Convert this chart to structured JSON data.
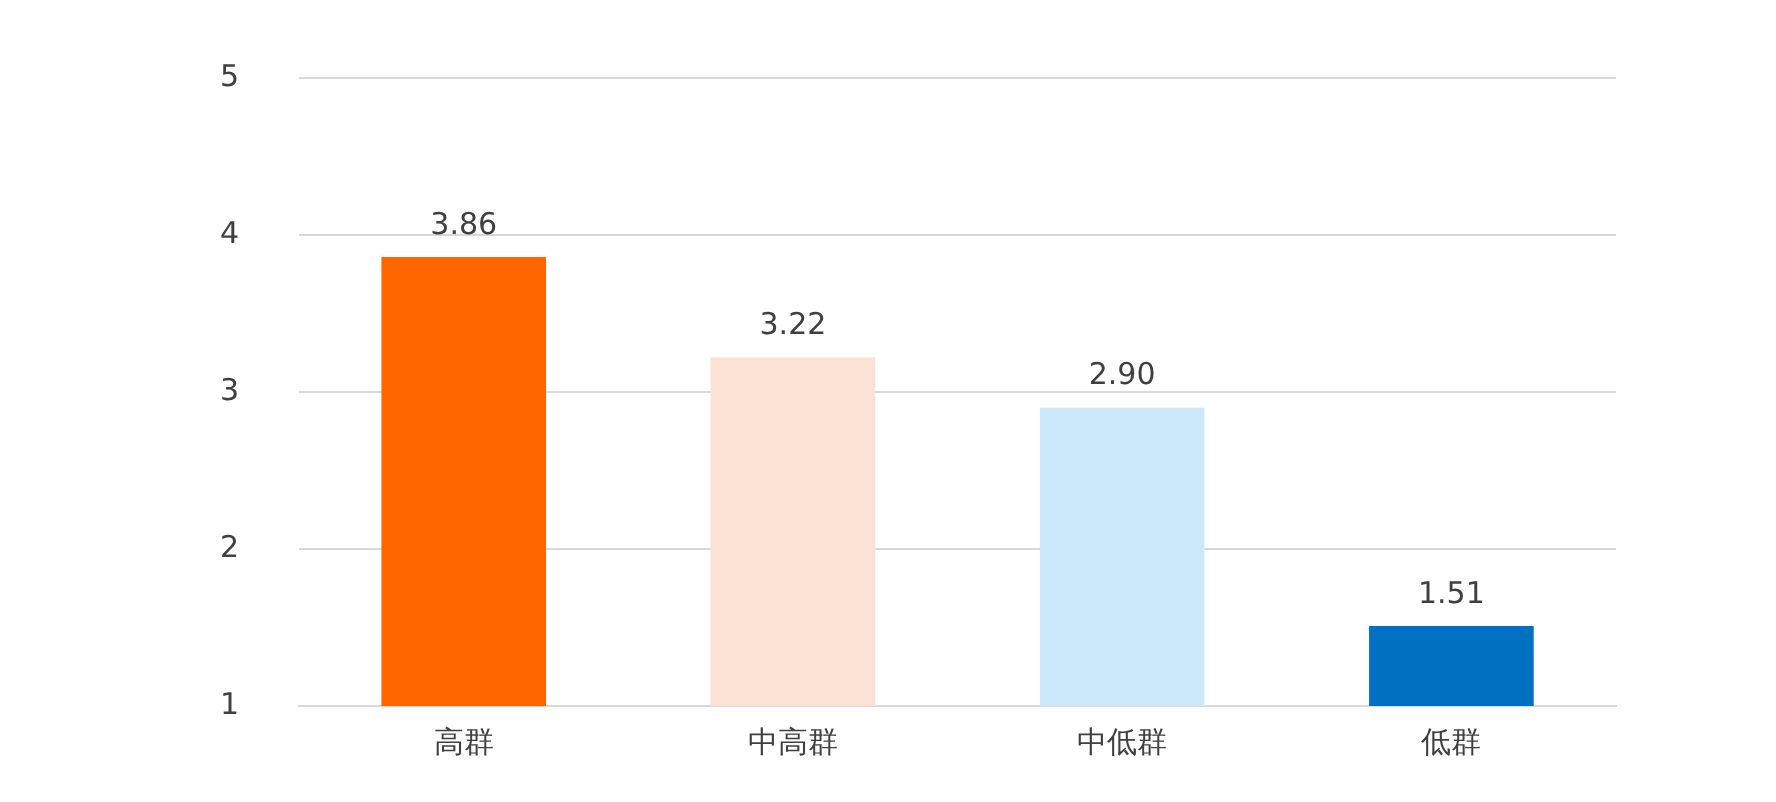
{
  "chart_data": {
    "type": "bar",
    "categories": [
      "高群",
      "中高群",
      "中低群",
      "低群"
    ],
    "values": [
      3.86,
      3.22,
      2.9,
      1.51
    ],
    "colors": [
      "#ff6600",
      "#fbe0d4",
      "#cce8fb",
      "#0070c0"
    ],
    "value_labels": [
      "3.86",
      "3.22",
      "2.90",
      "1.51"
    ],
    "ylim": [
      1,
      5
    ],
    "yticks": [
      1,
      2,
      3,
      4,
      5
    ],
    "grid": "y",
    "legend": false
  }
}
